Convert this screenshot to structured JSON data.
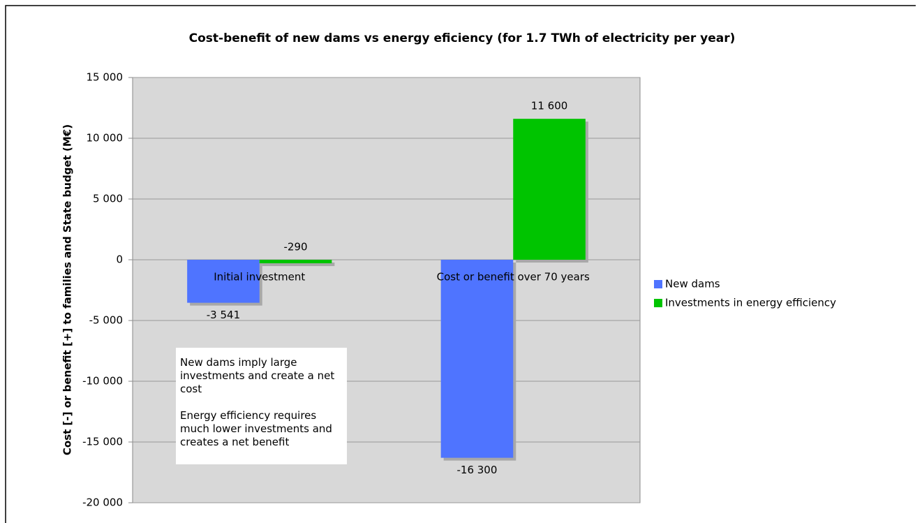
{
  "chart_data": {
    "type": "bar",
    "title": "Cost-benefit of new dams vs energy eficiency (for 1.7 TWh of electricity per year)",
    "ylabel": "Cost [-] or benefit [+] to families and State budget (M€)",
    "categories": [
      "Initial investment",
      "Cost or benefit over 70 years"
    ],
    "series": [
      {
        "name": "New dams",
        "color": "#4f74ff",
        "values": [
          -3541,
          -16300
        ],
        "value_labels": [
          "-3 541",
          "-16 300"
        ]
      },
      {
        "name": "Investments in energy efficiency",
        "color": "#00c400",
        "values": [
          -290,
          11600
        ],
        "value_labels": [
          "-290",
          "11 600"
        ]
      }
    ],
    "ylim": [
      -20000,
      15000
    ],
    "yticks": [
      {
        "value": -20000,
        "label": "-20 000"
      },
      {
        "value": -15000,
        "label": "-15 000"
      },
      {
        "value": -10000,
        "label": "-10 000"
      },
      {
        "value": -5000,
        "label": "-5 000"
      },
      0,
      {
        "value": 5000,
        "label": "5 000"
      },
      {
        "value": 10000,
        "label": "10 000"
      },
      {
        "value": 15000,
        "label": "15 000"
      }
    ],
    "grid": true,
    "legend": "right",
    "annotation": [
      "New dams imply large investments and create a net cost",
      "Energy efficiency requires much lower investments and creates a net benefit"
    ]
  }
}
